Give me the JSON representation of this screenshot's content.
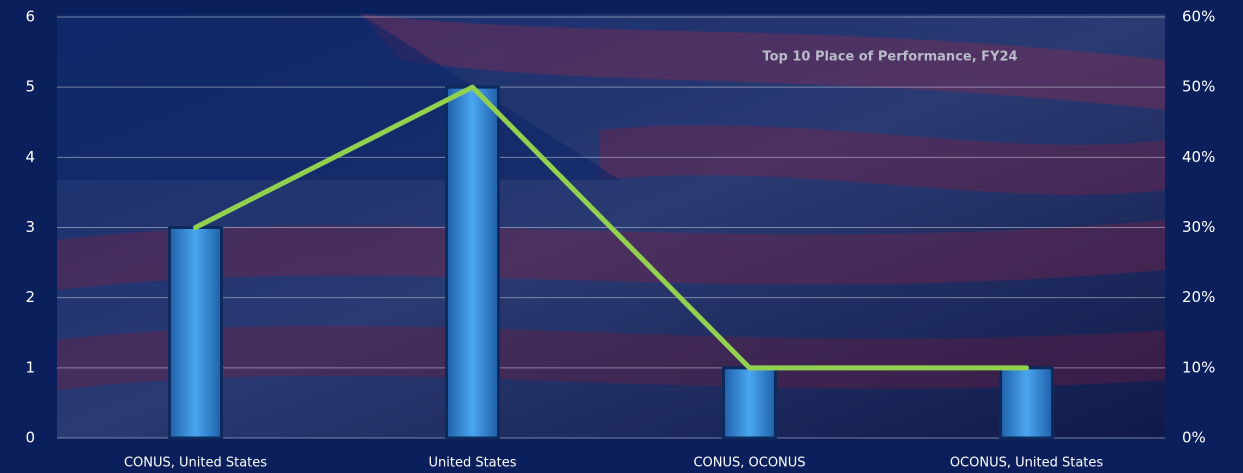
{
  "chart_data": {
    "type": "bar-line",
    "title": "Top 10 Place of Performance, FY24",
    "categories": [
      "CONUS, United States",
      "United States",
      "CONUS, OCONUS",
      "OCONUS, United States"
    ],
    "series": [
      {
        "type": "bar",
        "color": "#3d95e6",
        "values": [
          3,
          5,
          1,
          1
        ]
      },
      {
        "type": "line",
        "axis": "y2",
        "color": "#92d050",
        "values": [
          30,
          50,
          10,
          10
        ]
      }
    ],
    "ylim": [
      0,
      6
    ],
    "yticks": [
      0,
      1,
      2,
      3,
      4,
      5,
      6
    ],
    "y2lim": [
      0,
      60
    ],
    "y2ticks": [
      {
        "value": 0,
        "label": "0%"
      },
      {
        "value": 10,
        "label": "10%"
      },
      {
        "value": 20,
        "label": "20%"
      },
      {
        "value": 30,
        "label": "30%"
      },
      {
        "value": 40,
        "label": "40%"
      },
      {
        "value": 50,
        "label": "50%"
      },
      {
        "value": 60,
        "label": "60%"
      }
    ],
    "grid": true
  }
}
